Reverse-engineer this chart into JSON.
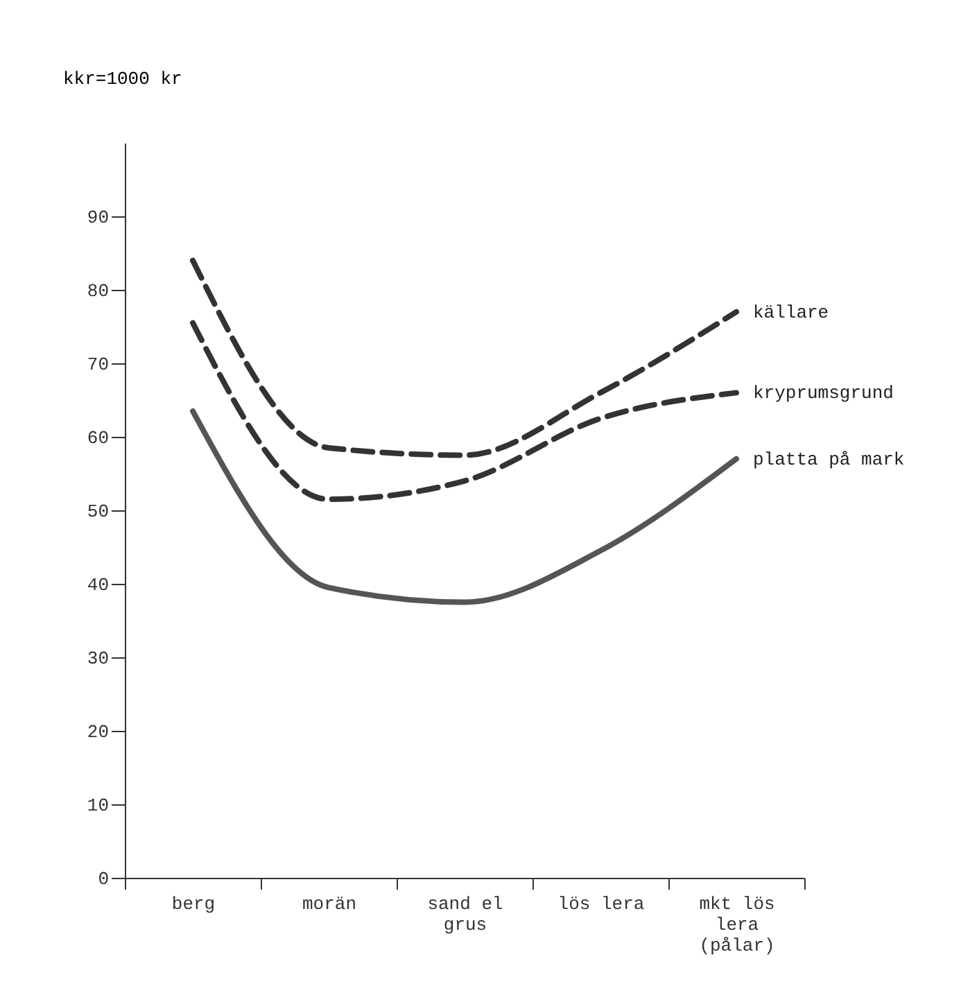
{
  "chart_data": {
    "type": "line",
    "ylabel": "kkr=1000 kr",
    "categories": [
      "berg",
      "morän",
      "sand el grus",
      "lös lera",
      "mkt lös lera (pålar)"
    ],
    "series": [
      {
        "name": "källare",
        "color": "#333333",
        "line_style": "dashed",
        "values": [
          84,
          58.5,
          57.5,
          66,
          77
        ]
      },
      {
        "name": "kryprumsgrund",
        "color": "#333333",
        "line_style": "dashed",
        "values": [
          75.5,
          51.5,
          54,
          62.5,
          66
        ]
      },
      {
        "name": "platta på mark",
        "color": "#555555",
        "line_style": "solid",
        "values": [
          63.5,
          39.5,
          37.5,
          44.5,
          57
        ]
      }
    ],
    "ylim": [
      0,
      100
    ],
    "yticks": [
      0,
      10,
      20,
      30,
      40,
      50,
      60,
      70,
      80,
      90
    ],
    "grid": false,
    "legend": false,
    "marker": "none"
  }
}
